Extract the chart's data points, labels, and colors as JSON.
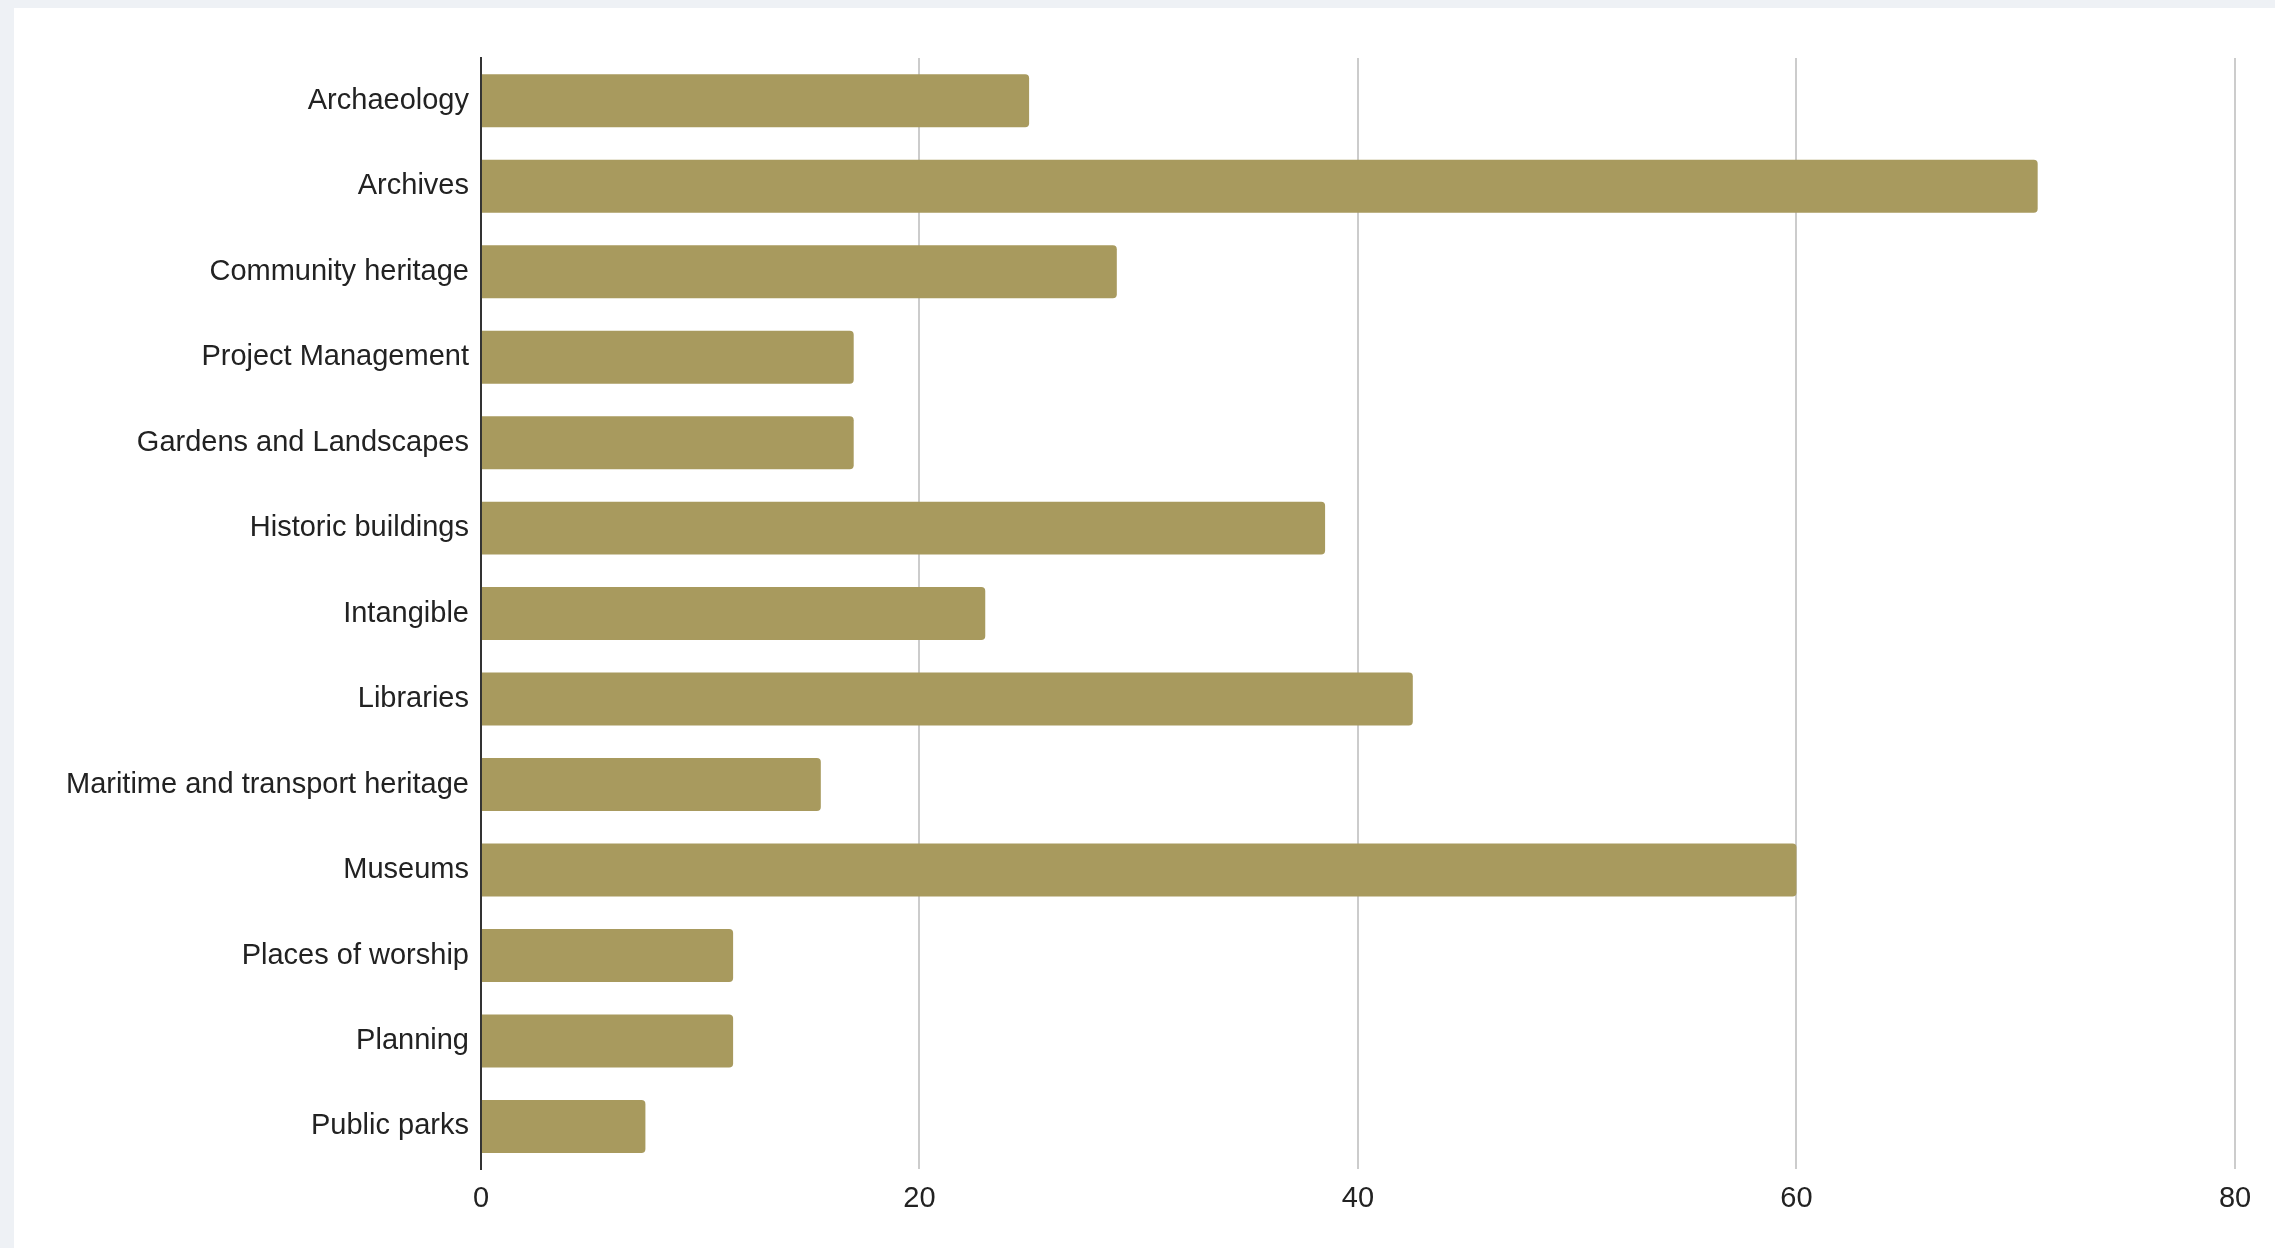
{
  "chart_data": {
    "type": "bar",
    "orientation": "horizontal",
    "categories": [
      "Archaeology",
      "Archives",
      "Community heritage",
      "Project Management",
      "Gardens and Landscapes",
      "Historic buildings",
      "Intangible",
      "Libraries",
      "Maritime and transport heritage",
      "Museums",
      "Places of worship",
      "Planning",
      "Public parks"
    ],
    "values": [
      25,
      71,
      29,
      17,
      17,
      38.5,
      23,
      42.5,
      15.5,
      60,
      11.5,
      11.5,
      7.5
    ],
    "color": "#a89a5e",
    "xlim": [
      0,
      80
    ],
    "xticks": [
      0,
      20,
      40,
      60,
      80
    ],
    "grid": "x",
    "legend": false
  }
}
